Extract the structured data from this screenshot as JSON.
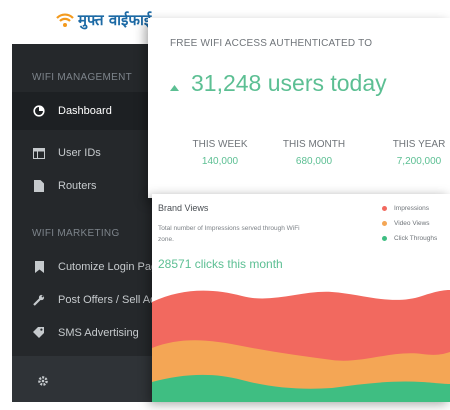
{
  "app": {
    "logo_text": "मुफ्त वाईफाई"
  },
  "sidebar": {
    "section_management": "WIFI MANAGEMENT",
    "section_marketing": "WIFI MARKETING",
    "items": [
      {
        "label": "Dashboard",
        "icon": "dashboard-icon"
      },
      {
        "label": "User IDs",
        "icon": "table-icon"
      },
      {
        "label": "Routers",
        "icon": "document-icon"
      },
      {
        "label": "Cutomize Login Page",
        "icon": "bookmark-icon"
      },
      {
        "label": "Post Offers / Sell Ads",
        "icon": "wrench-icon"
      },
      {
        "label": "SMS Advertising",
        "icon": "tag-icon"
      }
    ],
    "footer_icon": "gear-icon"
  },
  "summary": {
    "heading": "FREE WIFI ACCESS AUTHENTICATED TO",
    "headline": "31,248 users today",
    "stats": [
      {
        "label": "THIS WEEK",
        "value": "140,000"
      },
      {
        "label": "THIS MONTH",
        "value": "680,000"
      },
      {
        "label": "THIS YEAR",
        "value": "7,200,000"
      }
    ]
  },
  "brand_views": {
    "title": "Brand Views",
    "subtitle": "Total number of Impressions served through WiFi zone.",
    "clicks": "28571 clicks this month",
    "legend": [
      {
        "label": "Impressions",
        "color": "#f2695f"
      },
      {
        "label": "Video Views",
        "color": "#f4a655"
      },
      {
        "label": "Click Throughs",
        "color": "#3fbe82"
      }
    ]
  },
  "colors": {
    "accent": "#5cbf93",
    "sidebar_bg": "#25282b",
    "logo_blue": "#1d6aa5",
    "logo_orange": "#f39a1e"
  }
}
